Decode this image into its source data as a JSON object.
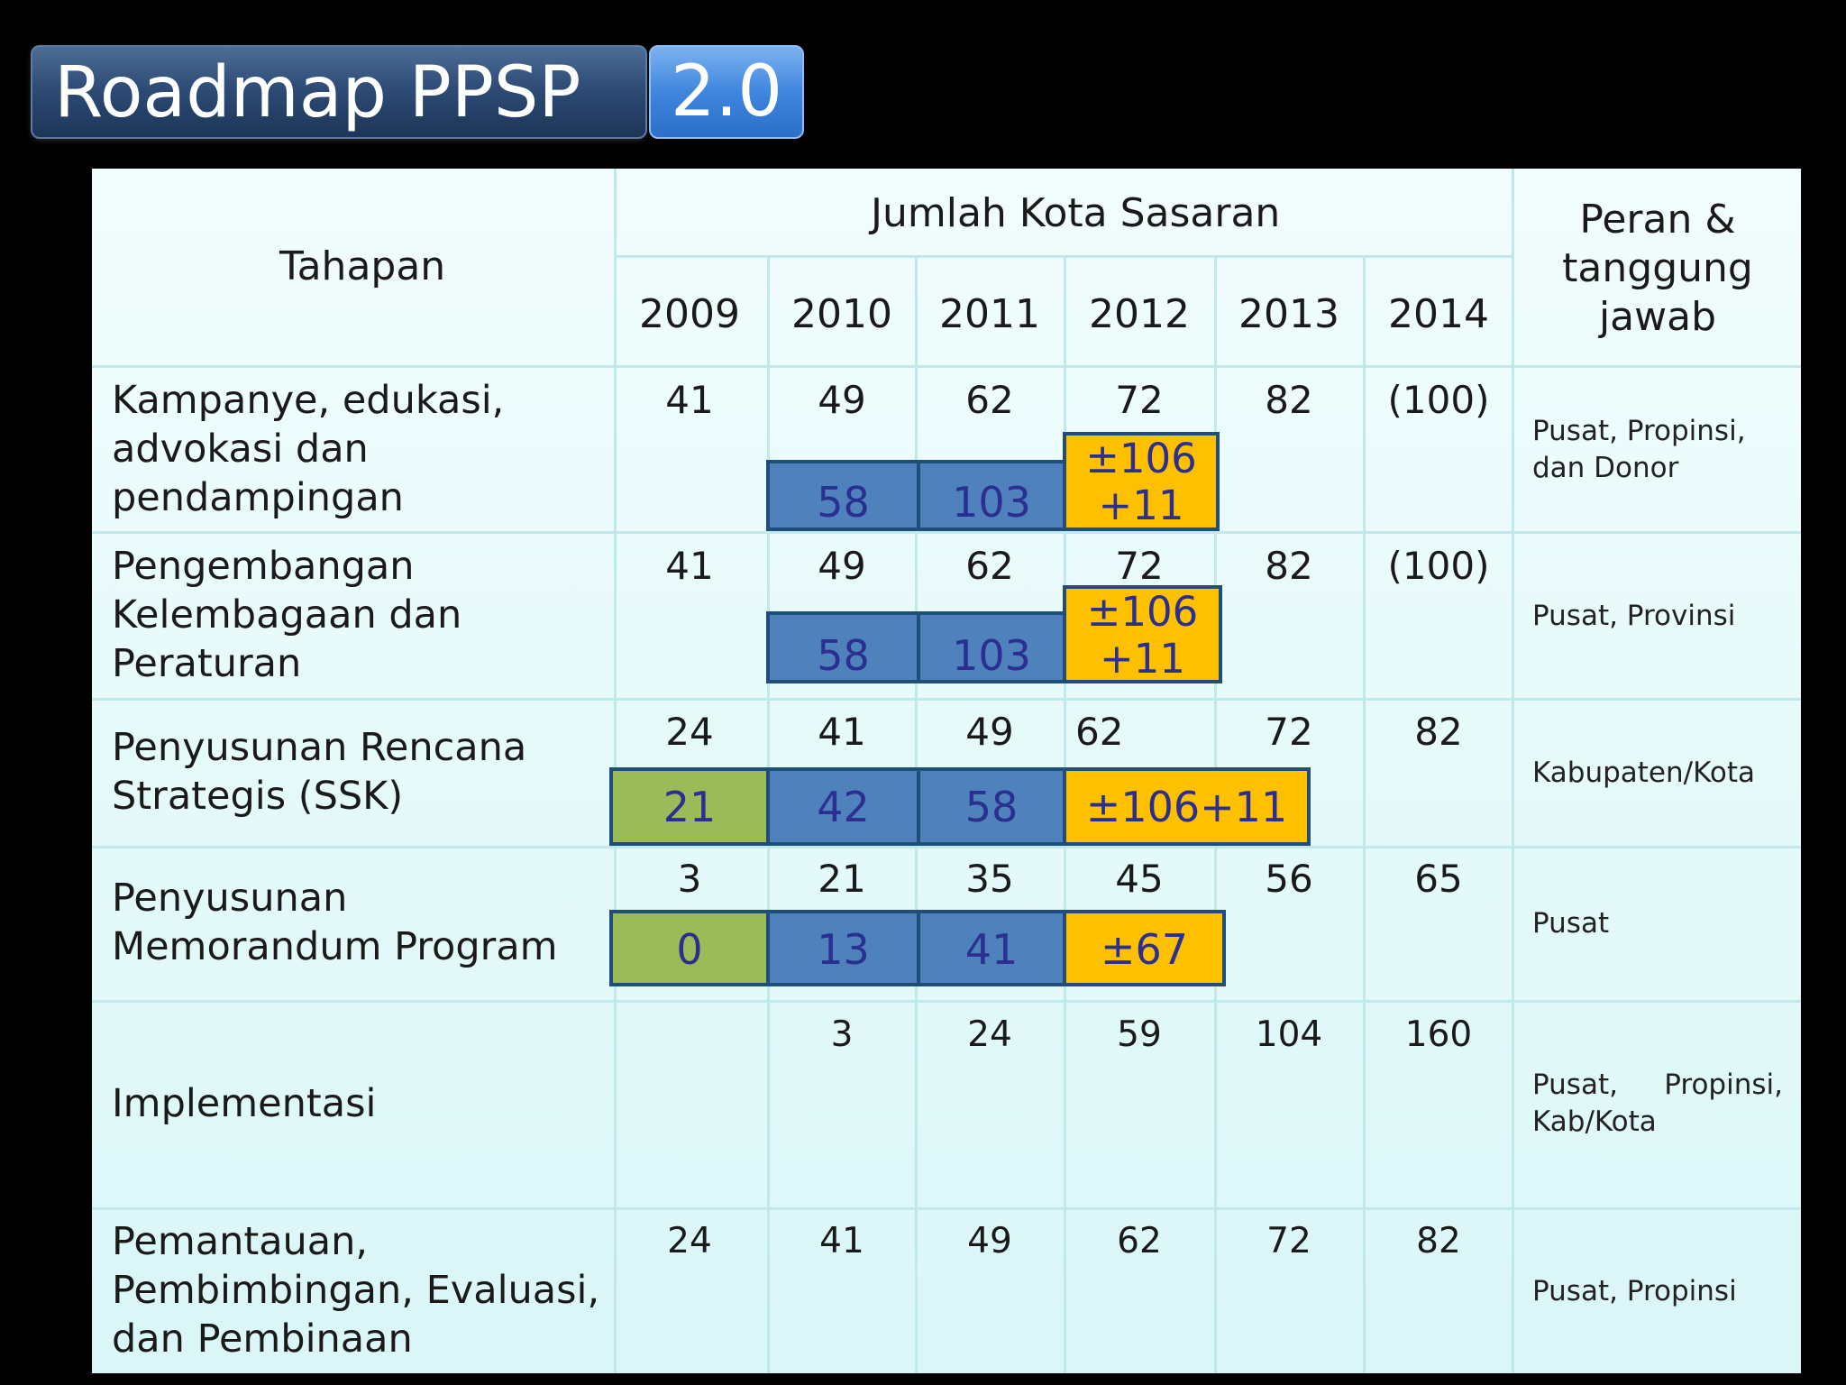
{
  "slide": {
    "title": "Roadmap PPSP",
    "version": "2.0"
  },
  "header": {
    "stage_col": "Tahapan",
    "target_group": "Jumlah Kota Sasaran",
    "years": [
      "2009",
      "2010",
      "2011",
      "2012",
      "2013",
      "2014"
    ],
    "role_col_lines": [
      "Peran &",
      "tanggung",
      "jawab"
    ]
  },
  "rows": [
    {
      "stage_lines": [
        "Kampanye, edukasi,",
        "advokasi dan",
        "pendampingan"
      ],
      "targets": [
        "41",
        "49",
        "62",
        "72",
        "82",
        "(100)"
      ],
      "achieved": [
        "58",
        "103"
      ],
      "projected_lines": [
        "±106",
        "+11"
      ],
      "role": "Pusat, Propinsi, dan Donor"
    },
    {
      "stage_lines": [
        "Pengembangan",
        "Kelembagaan dan",
        "Peraturan"
      ],
      "targets": [
        "41",
        "49",
        "62",
        "72",
        "82",
        "(100)"
      ],
      "achieved": [
        "58",
        "103"
      ],
      "projected_lines": [
        "±106",
        "+11"
      ],
      "role": "Pusat, Provinsi"
    },
    {
      "stage_lines": [
        "Penyusunan Rencana",
        "Strategis (SSK)"
      ],
      "targets": [
        "24",
        "41",
        "49",
        "62",
        "72",
        "82"
      ],
      "achieved": [
        "21",
        "42",
        "58"
      ],
      "projected": "±106+11",
      "role": "Kabupaten/Kota"
    },
    {
      "stage_lines": [
        "Penyusunan",
        "Memorandum Program"
      ],
      "targets": [
        "3",
        "21",
        "35",
        "45",
        "56",
        "65"
      ],
      "achieved": [
        "0",
        "13",
        "41"
      ],
      "projected": "±67",
      "role": "Pusat"
    },
    {
      "stage_lines": [
        "Implementasi"
      ],
      "targets": [
        "3",
        "24",
        "59",
        "104",
        "160"
      ],
      "role_lines": [
        "Pusat,",
        "Propinsi,",
        "Kab/Kota"
      ]
    },
    {
      "stage_lines": [
        "Pemantauan,",
        "Pembimbingan, Evaluasi,",
        "dan Pembinaan"
      ],
      "targets": [
        "24",
        "41",
        "49",
        "62",
        "72",
        "82"
      ],
      "role": "Pusat, Propinsi"
    }
  ],
  "colors": {
    "green": "#9bbb59",
    "blue": "#4f81bd",
    "gold": "#ffc000"
  }
}
